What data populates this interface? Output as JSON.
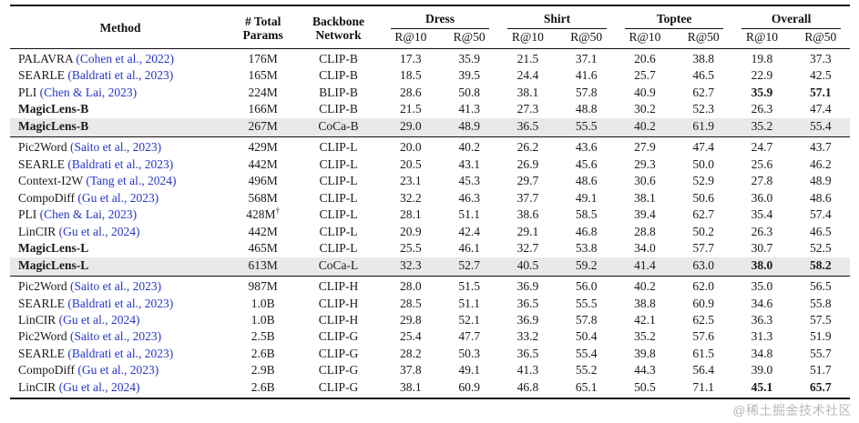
{
  "colors": {
    "citation_blue": "#2636c8",
    "row_shade": "#e9e9e9"
  },
  "watermark": "@稀土掘金技术社区",
  "table": {
    "headers": {
      "method": "Method",
      "params": "# Total\nParams",
      "backbone": "Backbone\nNetwork",
      "groups": [
        "Dress",
        "Shirt",
        "Toptee",
        "Overall"
      ],
      "sub_r10": "R@10",
      "sub_r50": "R@50"
    },
    "groups": [
      {
        "rows": [
          {
            "method": "PALAVRA",
            "citation": "(Cohen et al., 2022)",
            "params": "176M",
            "backbone": "CLIP-B",
            "values": [
              "17.3",
              "35.9",
              "21.5",
              "37.1",
              "20.6",
              "38.8",
              "19.8",
              "37.3"
            ]
          },
          {
            "method": "SEARLE",
            "citation": "(Baldrati et al., 2023)",
            "params": "165M",
            "backbone": "CLIP-B",
            "values": [
              "18.5",
              "39.5",
              "24.4",
              "41.6",
              "25.7",
              "46.5",
              "22.9",
              "42.5"
            ]
          },
          {
            "method": "PLI",
            "citation": "(Chen & Lai, 2023)",
            "params": "224M",
            "backbone": "BLIP-B",
            "values": [
              "28.6",
              "50.8",
              "38.1",
              "57.8",
              "40.9",
              "62.7",
              "35.9",
              "57.1"
            ],
            "bold": [
              6,
              7
            ]
          },
          {
            "method": "MagicLens-B",
            "method_bold": true,
            "params": "166M",
            "backbone": "CLIP-B",
            "values": [
              "21.5",
              "41.3",
              "27.3",
              "48.8",
              "30.2",
              "52.3",
              "26.3",
              "47.4"
            ]
          },
          {
            "method": "MagicLens-B",
            "method_bold": true,
            "shaded": true,
            "params": "267M",
            "backbone": "CoCa-B",
            "values": [
              "29.0",
              "48.9",
              "36.5",
              "55.5",
              "40.2",
              "61.9",
              "35.2",
              "55.4"
            ]
          }
        ]
      },
      {
        "rows": [
          {
            "method": "Pic2Word",
            "citation": "(Saito et al., 2023)",
            "params": "429M",
            "backbone": "CLIP-L",
            "values": [
              "20.0",
              "40.2",
              "26.2",
              "43.6",
              "27.9",
              "47.4",
              "24.7",
              "43.7"
            ]
          },
          {
            "method": "SEARLE",
            "citation": "(Baldrati et al., 2023)",
            "params": "442M",
            "backbone": "CLIP-L",
            "values": [
              "20.5",
              "43.1",
              "26.9",
              "45.6",
              "29.3",
              "50.0",
              "25.6",
              "46.2"
            ]
          },
          {
            "method": "Context-I2W",
            "citation": "(Tang et al., 2024)",
            "params": "496M",
            "backbone": "CLIP-L",
            "values": [
              "23.1",
              "45.3",
              "29.7",
              "48.6",
              "30.6",
              "52.9",
              "27.8",
              "48.9"
            ]
          },
          {
            "method": "CompoDiff",
            "citation": "(Gu et al., 2023)",
            "params": "568M",
            "backbone": "CLIP-L",
            "values": [
              "32.2",
              "46.3",
              "37.7",
              "49.1",
              "38.1",
              "50.6",
              "36.0",
              "48.6"
            ]
          },
          {
            "method": "PLI",
            "citation": "(Chen & Lai, 2023)",
            "params": "428M",
            "dagger": true,
            "backbone": "CLIP-L",
            "values": [
              "28.1",
              "51.1",
              "38.6",
              "58.5",
              "39.4",
              "62.7",
              "35.4",
              "57.4"
            ]
          },
          {
            "method": "LinCIR",
            "citation": "(Gu et al., 2024)",
            "params": "442M",
            "backbone": "CLIP-L",
            "values": [
              "20.9",
              "42.4",
              "29.1",
              "46.8",
              "28.8",
              "50.2",
              "26.3",
              "46.5"
            ]
          },
          {
            "method": "MagicLens-L",
            "method_bold": true,
            "params": "465M",
            "backbone": "CLIP-L",
            "values": [
              "25.5",
              "46.1",
              "32.7",
              "53.8",
              "34.0",
              "57.7",
              "30.7",
              "52.5"
            ]
          },
          {
            "method": "MagicLens-L",
            "method_bold": true,
            "shaded": true,
            "params": "613M",
            "backbone": "CoCa-L",
            "values": [
              "32.3",
              "52.7",
              "40.5",
              "59.2",
              "41.4",
              "63.0",
              "38.0",
              "58.2"
            ],
            "bold": [
              6,
              7
            ]
          }
        ]
      },
      {
        "rows": [
          {
            "method": "Pic2Word",
            "citation": "(Saito et al., 2023)",
            "params": "987M",
            "backbone": "CLIP-H",
            "values": [
              "28.0",
              "51.5",
              "36.9",
              "56.0",
              "40.2",
              "62.0",
              "35.0",
              "56.5"
            ]
          },
          {
            "method": "SEARLE",
            "citation": "(Baldrati et al., 2023)",
            "params": "1.0B",
            "backbone": "CLIP-H",
            "values": [
              "28.5",
              "51.1",
              "36.5",
              "55.5",
              "38.8",
              "60.9",
              "34.6",
              "55.8"
            ]
          },
          {
            "method": "LinCIR",
            "citation": "(Gu et al., 2024)",
            "params": "1.0B",
            "backbone": "CLIP-H",
            "values": [
              "29.8",
              "52.1",
              "36.9",
              "57.8",
              "42.1",
              "62.5",
              "36.3",
              "57.5"
            ]
          },
          {
            "method": "Pic2Word",
            "citation": "(Saito et al., 2023)",
            "params": "2.5B",
            "backbone": "CLIP-G",
            "values": [
              "25.4",
              "47.7",
              "33.2",
              "50.4",
              "35.2",
              "57.6",
              "31.3",
              "51.9"
            ]
          },
          {
            "method": "SEARLE",
            "citation": "(Baldrati et al., 2023)",
            "params": "2.6B",
            "backbone": "CLIP-G",
            "values": [
              "28.2",
              "50.3",
              "36.5",
              "55.4",
              "39.8",
              "61.5",
              "34.8",
              "55.7"
            ]
          },
          {
            "method": "CompoDiff",
            "citation": "(Gu et al., 2023)",
            "params": "2.9B",
            "backbone": "CLIP-G",
            "values": [
              "37.8",
              "49.1",
              "41.3",
              "55.2",
              "44.3",
              "56.4",
              "39.0",
              "51.7"
            ]
          },
          {
            "method": "LinCIR",
            "citation": "(Gu et al., 2024)",
            "params": "2.6B",
            "backbone": "CLIP-G",
            "values": [
              "38.1",
              "60.9",
              "46.8",
              "65.1",
              "50.5",
              "71.1",
              "45.1",
              "65.7"
            ],
            "bold": [
              6,
              7
            ]
          }
        ]
      }
    ]
  }
}
